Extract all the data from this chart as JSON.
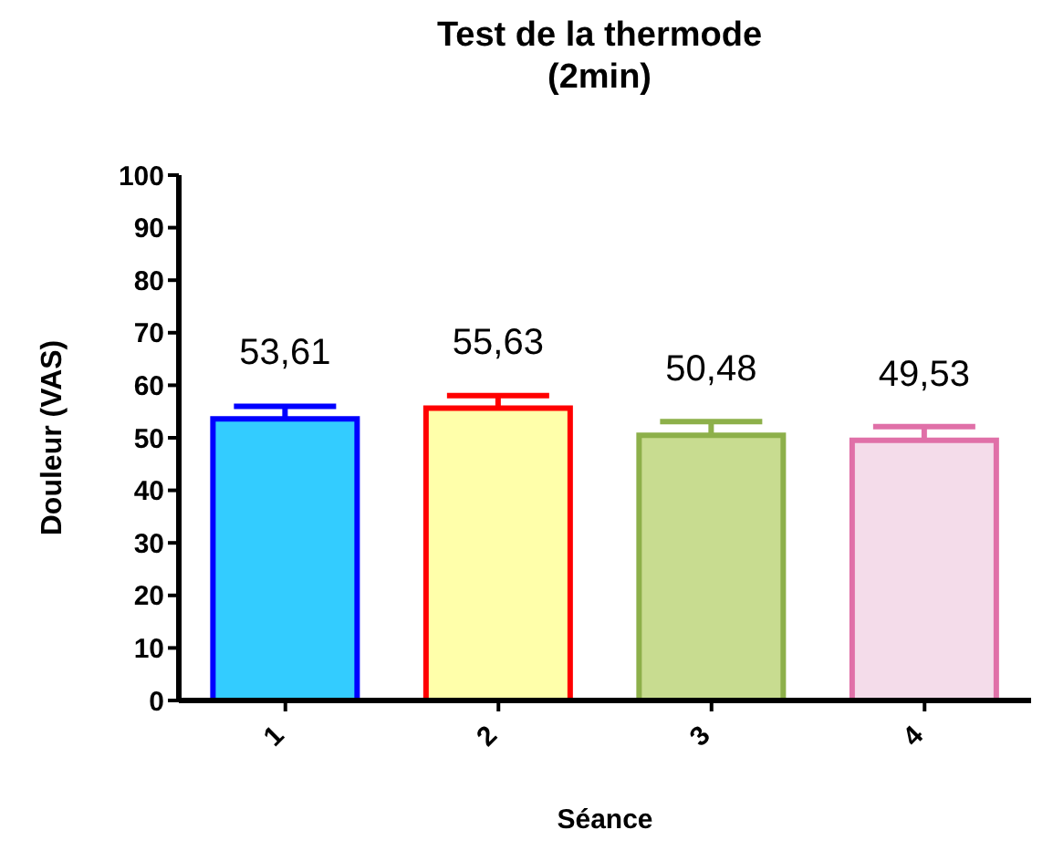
{
  "chart_data": {
    "type": "bar",
    "title": "Test de la thermode\n(2min)",
    "xlabel": "Séance",
    "ylabel": "Douleur (VAS)",
    "categories": [
      "1",
      "2",
      "3",
      "4"
    ],
    "values": [
      53.61,
      55.63,
      50.48,
      49.53
    ],
    "errors": [
      2.4,
      2.4,
      2.6,
      2.6
    ],
    "value_labels": [
      "53,61",
      "55,63",
      "50,48",
      "49,53"
    ],
    "colors": [
      "#0000ff",
      "#ff0000",
      "#8db04a",
      "#e070a8"
    ],
    "ylim": [
      0,
      100
    ],
    "yticks": [
      0,
      10,
      20,
      30,
      40,
      50,
      60,
      70,
      80,
      90,
      100
    ]
  }
}
